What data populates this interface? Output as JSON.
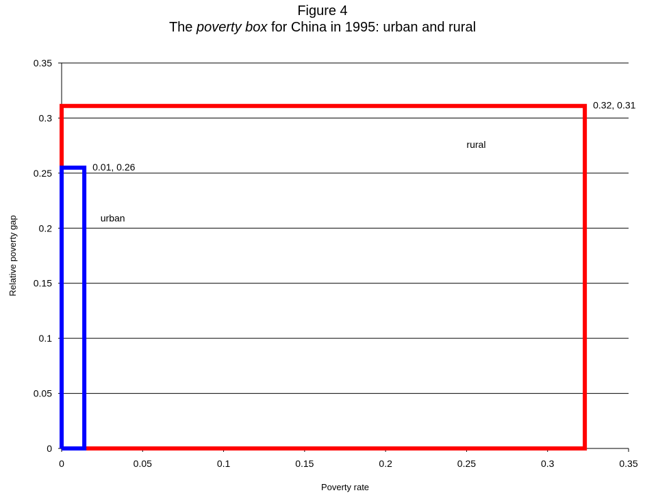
{
  "chart_data": {
    "type": "line",
    "title": "Figure 4",
    "subtitle": {
      "prefix": "The ",
      "emphasis": "poverty box",
      "suffix": " for China in 1995: urban and rural"
    },
    "xlabel": "Poverty rate",
    "ylabel": "Relative poverty gap",
    "xlim": [
      0,
      0.35
    ],
    "ylim": [
      0,
      0.35
    ],
    "xticks": [
      "0",
      "0.05",
      "0.1",
      "0.15",
      "0.2",
      "0.25",
      "0.3",
      "0.35"
    ],
    "yticks": [
      "0",
      "0.05",
      "0.1",
      "0.15",
      "0.2",
      "0.25",
      "0.3",
      "0.35"
    ],
    "grid": "horizontal",
    "series": [
      {
        "name": "rural",
        "color": "#ff0000",
        "points": [
          [
            0,
            0
          ],
          [
            0.323,
            0
          ],
          [
            0.323,
            0.311
          ],
          [
            0,
            0.311
          ],
          [
            0,
            0
          ]
        ],
        "data_label": "0.32, 0.31"
      },
      {
        "name": "urban",
        "color": "#0000ff",
        "points": [
          [
            0,
            0
          ],
          [
            0.014,
            0
          ],
          [
            0.014,
            0.255
          ],
          [
            0,
            0.255
          ],
          [
            0,
            0
          ]
        ],
        "data_label": "0.01, 0.26"
      }
    ],
    "annotations": [
      {
        "text": "rural",
        "x": 0.25,
        "y": 0.273
      },
      {
        "text": "urban",
        "x": 0.024,
        "y": 0.206
      }
    ]
  }
}
